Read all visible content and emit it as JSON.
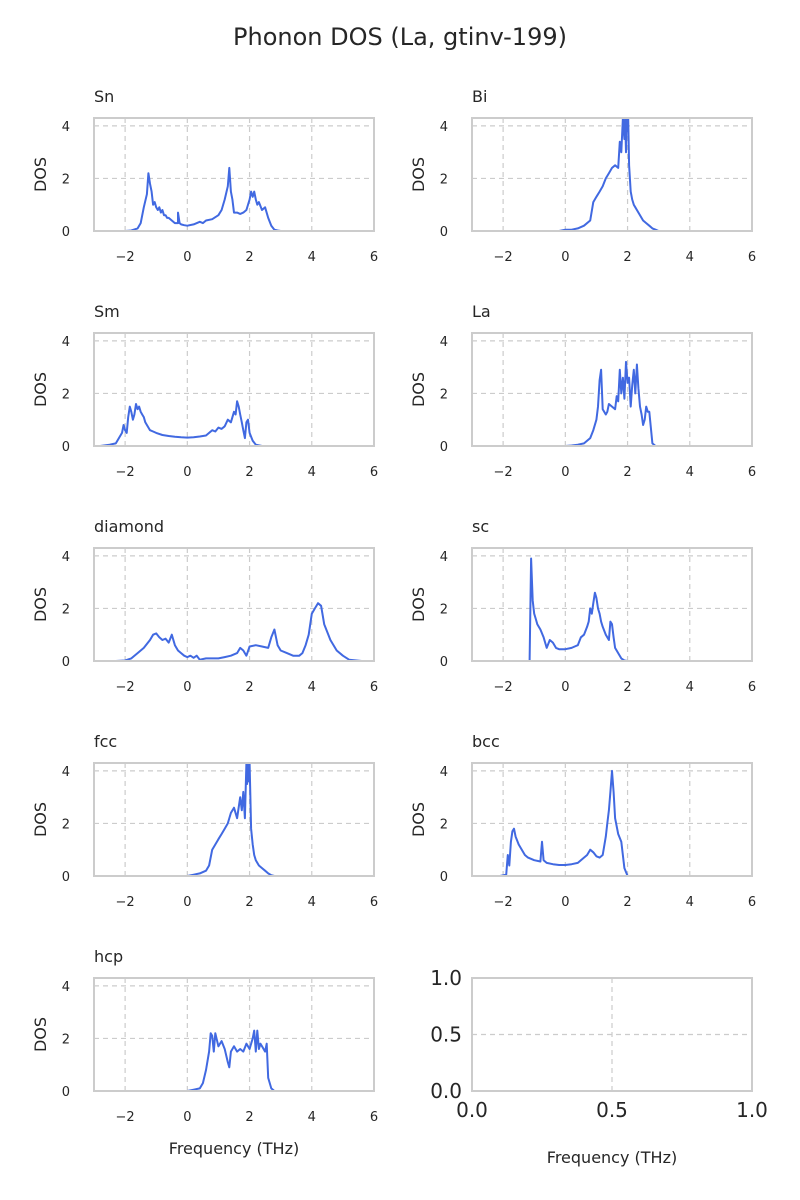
{
  "figure": {
    "title": "Phonon DOS (La, gtinv-199)"
  },
  "colors": {
    "line": "#4169e1",
    "axis": "#cccccc",
    "grid": "#cccccc",
    "text": "#262626"
  },
  "chart_data": [
    {
      "type": "line",
      "title": "Sn",
      "xlabel": "",
      "ylabel": "DOS",
      "xlim": [
        -3,
        6
      ],
      "ylim": [
        0,
        4.3
      ],
      "xticks": [
        -2,
        0,
        2,
        4,
        6
      ],
      "yticks": [
        0,
        2,
        4
      ],
      "grid": true,
      "x": [
        -3,
        -2.5,
        -2,
        -1.8,
        -1.6,
        -1.5,
        -1.4,
        -1.3,
        -1.25,
        -1.2,
        -1.15,
        -1.1,
        -1.05,
        -1.0,
        -0.95,
        -0.9,
        -0.85,
        -0.8,
        -0.75,
        -0.7,
        -0.65,
        -0.6,
        -0.5,
        -0.4,
        -0.3,
        -0.3,
        -0.25,
        -0.2,
        -0.1,
        0,
        0.2,
        0.4,
        0.5,
        0.6,
        0.8,
        1.0,
        1.1,
        1.2,
        1.3,
        1.35,
        1.4,
        1.45,
        1.5,
        1.6,
        1.7,
        1.8,
        1.9,
        2.0,
        2.05,
        2.1,
        2.15,
        2.2,
        2.25,
        2.3,
        2.4,
        2.5,
        2.6,
        2.7,
        2.8,
        2.9,
        3.0
      ],
      "values": [
        0,
        0,
        0,
        0.02,
        0.1,
        0.3,
        0.9,
        1.4,
        2.2,
        1.8,
        1.5,
        1.0,
        1.1,
        0.9,
        0.8,
        0.9,
        0.7,
        0.8,
        0.6,
        0.6,
        0.5,
        0.5,
        0.4,
        0.3,
        0.3,
        0.7,
        0.3,
        0.25,
        0.22,
        0.2,
        0.25,
        0.35,
        0.3,
        0.4,
        0.45,
        0.6,
        0.8,
        1.2,
        1.7,
        2.4,
        1.5,
        1.2,
        0.7,
        0.7,
        0.65,
        0.7,
        0.8,
        1.2,
        1.5,
        1.3,
        1.5,
        1.2,
        1.0,
        1.1,
        0.8,
        0.9,
        0.5,
        0.2,
        0.05,
        0.02,
        0
      ]
    },
    {
      "type": "line",
      "title": "Bi",
      "xlabel": "",
      "ylabel": "DOS",
      "xlim": [
        -3,
        6
      ],
      "ylim": [
        0,
        4.3
      ],
      "xticks": [
        -2,
        0,
        2,
        4,
        6
      ],
      "yticks": [
        0,
        2,
        4
      ],
      "grid": true,
      "x": [
        -0.2,
        0,
        0.2,
        0.4,
        0.6,
        0.8,
        0.9,
        1.0,
        1.1,
        1.2,
        1.3,
        1.4,
        1.5,
        1.6,
        1.7,
        1.75,
        1.8,
        1.85,
        1.9,
        1.92,
        1.95,
        1.97,
        2.0,
        2.02,
        2.05,
        2.1,
        2.15,
        2.2,
        2.3,
        2.4,
        2.5,
        2.6,
        2.7,
        2.8,
        2.9,
        3.0
      ],
      "values": [
        0,
        0.05,
        0.05,
        0.1,
        0.2,
        0.4,
        1.1,
        1.3,
        1.5,
        1.7,
        2.0,
        2.2,
        2.4,
        2.5,
        2.4,
        3.4,
        3.0,
        4.3,
        3.5,
        4.3,
        3.0,
        4.3,
        3.8,
        4.3,
        2.5,
        1.5,
        1.2,
        1.0,
        0.8,
        0.6,
        0.4,
        0.3,
        0.2,
        0.1,
        0.05,
        0
      ]
    },
    {
      "type": "line",
      "title": "Sm",
      "xlabel": "",
      "ylabel": "DOS",
      "xlim": [
        -3,
        6
      ],
      "ylim": [
        0,
        4.3
      ],
      "xticks": [
        -2,
        0,
        2,
        4,
        6
      ],
      "yticks": [
        0,
        2,
        4
      ],
      "grid": true,
      "x": [
        -2.8,
        -2.5,
        -2.3,
        -2.2,
        -2.1,
        -2.05,
        -2.0,
        -1.95,
        -1.9,
        -1.85,
        -1.8,
        -1.75,
        -1.7,
        -1.65,
        -1.6,
        -1.55,
        -1.5,
        -1.45,
        -1.4,
        -1.35,
        -1.3,
        -1.2,
        -1.1,
        -1.0,
        -0.8,
        -0.6,
        -0.4,
        -0.2,
        0,
        0.2,
        0.4,
        0.6,
        0.7,
        0.8,
        0.9,
        1.0,
        1.1,
        1.2,
        1.3,
        1.4,
        1.5,
        1.55,
        1.6,
        1.65,
        1.7,
        1.75,
        1.8,
        1.85,
        1.9,
        1.95,
        2.0,
        2.1,
        2.2,
        2.4
      ],
      "values": [
        0,
        0.05,
        0.1,
        0.3,
        0.5,
        0.8,
        0.6,
        0.5,
        1.1,
        1.5,
        1.3,
        1.0,
        1.2,
        1.6,
        1.4,
        1.5,
        1.3,
        1.2,
        1.1,
        0.9,
        0.8,
        0.6,
        0.55,
        0.5,
        0.42,
        0.38,
        0.35,
        0.33,
        0.32,
        0.33,
        0.36,
        0.4,
        0.5,
        0.6,
        0.55,
        0.7,
        0.65,
        0.75,
        1.0,
        0.9,
        1.3,
        1.2,
        1.7,
        1.5,
        1.2,
        0.9,
        0.6,
        0.3,
        0.9,
        1.0,
        0.5,
        0.2,
        0.05,
        0
      ]
    },
    {
      "type": "line",
      "title": "La",
      "xlabel": "",
      "ylabel": "DOS",
      "xlim": [
        -3,
        6
      ],
      "ylim": [
        0,
        4.3
      ],
      "xticks": [
        -2,
        0,
        2,
        4,
        6
      ],
      "yticks": [
        0,
        2,
        4
      ],
      "grid": true,
      "x": [
        0,
        0.2,
        0.4,
        0.6,
        0.8,
        0.9,
        1.0,
        1.05,
        1.1,
        1.15,
        1.2,
        1.25,
        1.3,
        1.35,
        1.4,
        1.5,
        1.6,
        1.65,
        1.7,
        1.75,
        1.8,
        1.85,
        1.9,
        1.95,
        2.0,
        2.05,
        2.1,
        2.15,
        2.2,
        2.25,
        2.3,
        2.35,
        2.4,
        2.45,
        2.5,
        2.55,
        2.6,
        2.65,
        2.7,
        2.8,
        2.9
      ],
      "values": [
        0,
        0.02,
        0.05,
        0.1,
        0.3,
        0.6,
        1.0,
        1.5,
        2.5,
        2.9,
        1.4,
        1.3,
        1.2,
        1.3,
        1.6,
        1.5,
        1.4,
        1.9,
        1.7,
        2.9,
        2.0,
        2.6,
        1.8,
        3.2,
        2.4,
        2.6,
        1.5,
        2.3,
        2.9,
        2.0,
        3.1,
        2.2,
        1.5,
        1.2,
        0.8,
        1.0,
        1.5,
        1.3,
        1.3,
        0.1,
        0
      ]
    },
    {
      "type": "line",
      "title": "diamond",
      "xlabel": "",
      "ylabel": "DOS",
      "xlim": [
        -3,
        6
      ],
      "ylim": [
        0,
        4.3
      ],
      "xticks": [
        -2,
        0,
        2,
        4,
        6
      ],
      "yticks": [
        0,
        2,
        4
      ],
      "grid": true,
      "x": [
        -2.3,
        -2.0,
        -1.8,
        -1.6,
        -1.4,
        -1.2,
        -1.1,
        -1.0,
        -0.9,
        -0.8,
        -0.7,
        -0.6,
        -0.5,
        -0.4,
        -0.3,
        -0.2,
        -0.1,
        0,
        0.1,
        0.2,
        0.3,
        0.4,
        0.6,
        0.8,
        1.0,
        1.2,
        1.4,
        1.6,
        1.7,
        1.8,
        1.9,
        2.0,
        2.2,
        2.4,
        2.6,
        2.7,
        2.8,
        2.9,
        3.0,
        3.2,
        3.4,
        3.6,
        3.7,
        3.8,
        3.9,
        4.0,
        4.1,
        4.2,
        4.3,
        4.4,
        4.6,
        4.8,
        5.0,
        5.2,
        5.6
      ],
      "values": [
        0,
        0.02,
        0.1,
        0.3,
        0.5,
        0.8,
        1.0,
        1.05,
        0.9,
        0.8,
        0.85,
        0.7,
        1.0,
        0.6,
        0.4,
        0.3,
        0.2,
        0.15,
        0.2,
        0.12,
        0.2,
        0.05,
        0.1,
        0.1,
        0.1,
        0.15,
        0.2,
        0.3,
        0.5,
        0.4,
        0.2,
        0.55,
        0.6,
        0.55,
        0.5,
        0.9,
        1.2,
        0.6,
        0.4,
        0.3,
        0.2,
        0.2,
        0.3,
        0.6,
        1.0,
        1.8,
        2.0,
        2.2,
        2.1,
        1.4,
        0.8,
        0.4,
        0.2,
        0.05,
        0
      ]
    },
    {
      "type": "line",
      "title": "sc",
      "xlabel": "",
      "ylabel": "DOS",
      "xlim": [
        -3,
        6
      ],
      "ylim": [
        0,
        4.3
      ],
      "xticks": [
        -2,
        0,
        2,
        4,
        6
      ],
      "yticks": [
        0,
        2,
        4
      ],
      "grid": true,
      "x": [
        -1.15,
        -1.1,
        -1.05,
        -1.0,
        -0.95,
        -0.9,
        -0.8,
        -0.7,
        -0.6,
        -0.5,
        -0.4,
        -0.3,
        -0.2,
        0,
        0.2,
        0.3,
        0.4,
        0.5,
        0.6,
        0.7,
        0.75,
        0.8,
        0.85,
        0.9,
        0.95,
        1.0,
        1.05,
        1.1,
        1.15,
        1.2,
        1.3,
        1.4,
        1.45,
        1.5,
        1.55,
        1.6,
        1.7,
        1.8,
        1.9,
        2.0
      ],
      "values": [
        0,
        3.9,
        2.3,
        1.8,
        1.6,
        1.4,
        1.2,
        0.9,
        0.5,
        0.8,
        0.7,
        0.5,
        0.45,
        0.45,
        0.5,
        0.55,
        0.6,
        0.9,
        1.0,
        1.3,
        1.5,
        2.0,
        1.8,
        2.2,
        2.6,
        2.4,
        2.0,
        1.8,
        1.5,
        1.3,
        1.0,
        0.8,
        1.5,
        1.4,
        0.9,
        0.5,
        0.3,
        0.1,
        0.02,
        0
      ]
    },
    {
      "type": "line",
      "title": "fcc",
      "xlabel": "",
      "ylabel": "DOS",
      "xlim": [
        -3,
        6
      ],
      "ylim": [
        0,
        4.3
      ],
      "xticks": [
        -2,
        0,
        2,
        4,
        6
      ],
      "yticks": [
        0,
        2,
        4
      ],
      "grid": true,
      "x": [
        0,
        0.2,
        0.4,
        0.6,
        0.7,
        0.8,
        0.9,
        1.0,
        1.1,
        1.2,
        1.3,
        1.4,
        1.5,
        1.6,
        1.7,
        1.75,
        1.8,
        1.85,
        1.9,
        1.92,
        1.95,
        1.97,
        2.0,
        2.03,
        2.05,
        2.1,
        2.15,
        2.2,
        2.3,
        2.4,
        2.5,
        2.6,
        2.7,
        2.8
      ],
      "values": [
        0,
        0.05,
        0.1,
        0.2,
        0.4,
        1.0,
        1.2,
        1.4,
        1.6,
        1.8,
        2.0,
        2.4,
        2.6,
        2.2,
        3.0,
        2.5,
        3.2,
        2.2,
        4.3,
        3.5,
        4.3,
        3.6,
        4.3,
        2.8,
        1.8,
        1.2,
        0.8,
        0.6,
        0.4,
        0.3,
        0.2,
        0.1,
        0.03,
        0
      ]
    },
    {
      "type": "line",
      "title": "bcc",
      "xlabel": "",
      "ylabel": "DOS",
      "xlim": [
        -3,
        6
      ],
      "ylim": [
        0,
        4.3
      ],
      "xticks": [
        -2,
        0,
        2,
        4,
        6
      ],
      "yticks": [
        0,
        2,
        4
      ],
      "grid": true,
      "x": [
        -2.1,
        -1.9,
        -1.85,
        -1.8,
        -1.75,
        -1.7,
        -1.65,
        -1.6,
        -1.5,
        -1.4,
        -1.3,
        -1.2,
        -1.0,
        -0.8,
        -0.75,
        -0.7,
        -0.6,
        -0.4,
        -0.2,
        0,
        0.2,
        0.4,
        0.5,
        0.6,
        0.7,
        0.8,
        0.9,
        1.0,
        1.1,
        1.2,
        1.3,
        1.35,
        1.4,
        1.45,
        1.5,
        1.55,
        1.6,
        1.7,
        1.8,
        1.9,
        2.0
      ],
      "values": [
        0,
        0.05,
        0.8,
        0.4,
        1.3,
        1.7,
        1.8,
        1.5,
        1.2,
        1.0,
        0.8,
        0.7,
        0.6,
        0.55,
        1.3,
        0.6,
        0.5,
        0.45,
        0.42,
        0.42,
        0.45,
        0.5,
        0.6,
        0.7,
        0.8,
        1.0,
        0.9,
        0.75,
        0.7,
        0.8,
        1.5,
        2.0,
        2.5,
        3.2,
        4.0,
        3.2,
        2.2,
        1.6,
        1.3,
        0.3,
        0
      ]
    },
    {
      "type": "line",
      "title": "hcp",
      "xlabel": "Frequency (THz)",
      "ylabel": "DOS",
      "xlim": [
        -3,
        6
      ],
      "ylim": [
        0,
        4.3
      ],
      "xticks": [
        -2,
        0,
        2,
        4,
        6
      ],
      "yticks": [
        0,
        2,
        4
      ],
      "grid": true,
      "x": [
        0,
        0.2,
        0.4,
        0.5,
        0.6,
        0.7,
        0.75,
        0.8,
        0.85,
        0.9,
        1.0,
        1.1,
        1.2,
        1.3,
        1.35,
        1.4,
        1.5,
        1.6,
        1.7,
        1.8,
        1.9,
        2.0,
        2.1,
        2.15,
        2.2,
        2.25,
        2.3,
        2.35,
        2.4,
        2.5,
        2.55,
        2.6,
        2.7,
        2.8
      ],
      "values": [
        0,
        0.05,
        0.1,
        0.3,
        0.8,
        1.5,
        2.2,
        2.1,
        1.5,
        2.2,
        1.7,
        1.9,
        1.6,
        1.1,
        0.9,
        1.5,
        1.7,
        1.5,
        1.6,
        1.5,
        1.8,
        1.6,
        2.0,
        2.3,
        1.5,
        2.3,
        1.6,
        1.8,
        1.7,
        1.5,
        1.8,
        0.5,
        0.1,
        0
      ]
    },
    {
      "type": "line",
      "title": "",
      "xlabel": "Frequency (THz)",
      "ylabel": "",
      "xlim": [
        0,
        1
      ],
      "ylim": [
        0,
        1
      ],
      "xticks": [
        0.0,
        0.5,
        1.0
      ],
      "yticks": [
        0.0,
        0.5,
        1.0
      ],
      "grid": true,
      "x": [],
      "values": []
    }
  ]
}
